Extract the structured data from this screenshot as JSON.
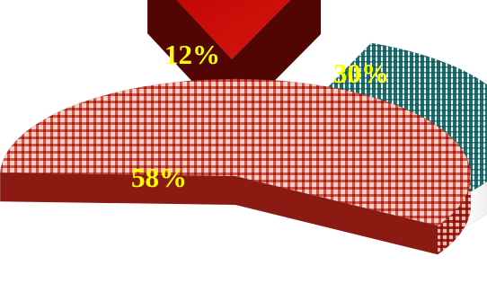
{
  "chart_data": {
    "type": "pie",
    "style": "3d-exploded",
    "title": "",
    "slices": [
      {
        "label": "58%",
        "value": 58,
        "color": "#c8281e",
        "side_color": "#9e1c14",
        "pattern": "checkered"
      },
      {
        "label": "12%",
        "value": 12,
        "color": "#c00000",
        "side_color": "#6a0a06",
        "pattern": "solid"
      },
      {
        "label": "30%",
        "value": 30,
        "color": "#1f6e6e",
        "side_color": "#e6e6e6",
        "pattern": "striped"
      }
    ],
    "legend": "none"
  }
}
